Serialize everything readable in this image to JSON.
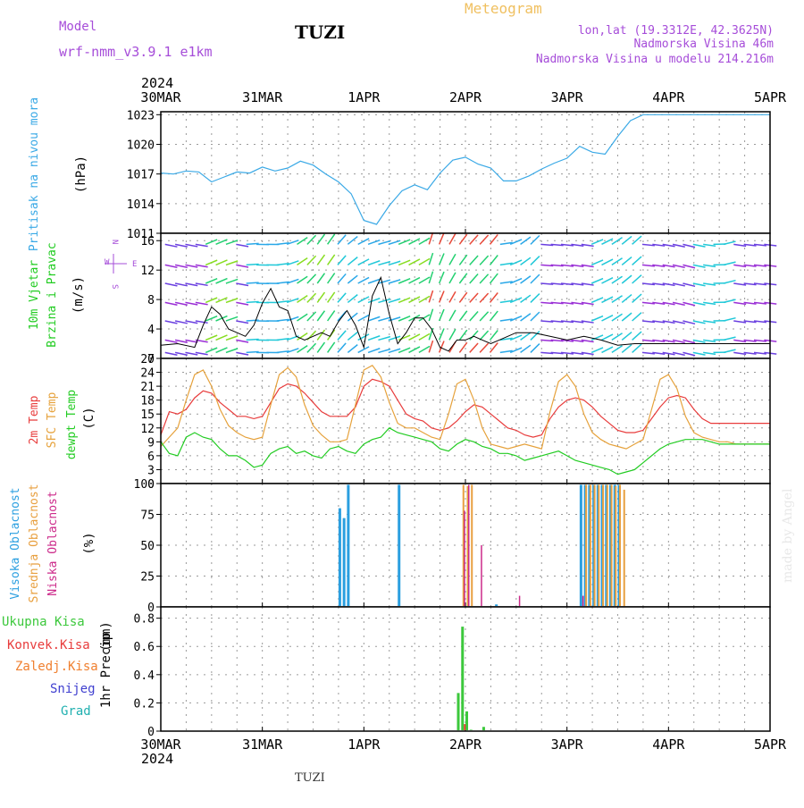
{
  "header": {
    "model_label": "Model",
    "model_name": "wrf-nmm_v3.9.1 e1km",
    "station": "TUZI",
    "title": "Meteogram",
    "lonlat": "lon,lat (19.3312E, 42.3625N)",
    "elevation": "Nadmorska Visina 46m",
    "model_elevation": "Nadmorska Visina u modelu 214.216m",
    "footer_station": "TUZI",
    "watermark": "made by Angel"
  },
  "colors": {
    "pressure": "#3aa9e6",
    "temp2m": "#e83c3c",
    "sfc": "#e6a23c",
    "dew": "#22cc22",
    "model_label": "#a64dd9",
    "title_orange": "#f0c060",
    "high_cloud": "#2b9fe0",
    "mid_cloud": "#e8a040",
    "low_cloud": "#cc2a8a",
    "total_precip": "#3cc83c",
    "conv_precip": "#e83c3c",
    "frz_precip": "#f08030",
    "snow": "#4040d0",
    "graupel": "#20b0b0",
    "wind_speed": "#000000"
  },
  "chart_data": [
    {
      "type": "line",
      "panel": "pressure",
      "ylabel_left": "Pritisak na nivou mora",
      "unit": "(hPa)",
      "yticks": [
        "1023",
        "1020",
        "1017",
        "1014",
        "1011"
      ],
      "ylim": [
        1011,
        1023.3
      ],
      "xlim": [
        0,
        144
      ],
      "series": [
        {
          "name": "Pritisak na nivou mora",
          "x": [
            0,
            3,
            6,
            9,
            12,
            15,
            18,
            21,
            24,
            27,
            30,
            33,
            36,
            39,
            42,
            45,
            48,
            51,
            54,
            57,
            60,
            63,
            66,
            69,
            72,
            75,
            78,
            81,
            84,
            87,
            90,
            93,
            96,
            99,
            102,
            105,
            108,
            111,
            114,
            117,
            120,
            123,
            126,
            129,
            132,
            135,
            138,
            141,
            144
          ],
          "values": [
            1017.1,
            1017.0,
            1017.3,
            1017.2,
            1016.2,
            1016.7,
            1017.2,
            1017.1,
            1017.7,
            1017.3,
            1017.6,
            1018.3,
            1017.9,
            1017.0,
            1016.2,
            1015.0,
            1012.3,
            1011.9,
            1013.8,
            1015.3,
            1015.9,
            1015.4,
            1017.1,
            1018.4,
            1018.7,
            1018.0,
            1017.6,
            1016.3,
            1016.3,
            1016.8,
            1017.5,
            1018.1,
            1018.6,
            1019.8,
            1019.2,
            1019.0,
            1020.8,
            1022.4,
            1023.0,
            1023.0,
            1023.0,
            1023.0,
            1023.0,
            1023.0,
            1023.0,
            1023.0,
            1023.0,
            1023.0,
            1023.0
          ]
        }
      ]
    },
    {
      "type": "line",
      "panel": "wind",
      "ylabel_left": "10m Vjetar",
      "ylabel_left2": "Brzina i Pravac",
      "unit": "(m/s)",
      "legend_compass": [
        "N",
        "W",
        "S",
        "E"
      ],
      "yticks": [
        "16",
        "12",
        "8",
        "4",
        "0"
      ],
      "ylim": [
        0,
        17
      ],
      "xlim": [
        0,
        144
      ],
      "series": [
        {
          "name": "10m Vjetar",
          "x": [
            0,
            4,
            8,
            10,
            12,
            14,
            16,
            18,
            20,
            22,
            24,
            26,
            28,
            30,
            32,
            34,
            36,
            38,
            40,
            42,
            44,
            46,
            48,
            50,
            52,
            54,
            56,
            58,
            60,
            62,
            64,
            66,
            68,
            70,
            72,
            74,
            76,
            78,
            80,
            84,
            88,
            92,
            96,
            100,
            104,
            108,
            112,
            116,
            120,
            124,
            128,
            132,
            136,
            140,
            144
          ],
          "values": [
            1.8,
            2.0,
            1.5,
            4.5,
            7.0,
            6.0,
            4.0,
            3.5,
            3.0,
            4.5,
            7.5,
            9.5,
            7.0,
            6.5,
            3.0,
            2.5,
            3.0,
            3.5,
            3.0,
            5.0,
            6.5,
            4.5,
            1.5,
            8.5,
            11.0,
            6.0,
            2.0,
            3.5,
            5.5,
            5.5,
            4.0,
            1.5,
            1.0,
            2.5,
            2.5,
            3.0,
            2.5,
            2.0,
            2.5,
            3.5,
            3.5,
            3.0,
            2.5,
            3.0,
            2.5,
            1.8,
            2.0,
            2.0,
            2.0,
            2.0,
            2.0,
            2.0,
            2.0,
            2.0,
            2.0
          ]
        }
      ]
    },
    {
      "type": "line",
      "panel": "temperature",
      "ylabel_left": "2m Temp",
      "ylabel_left2": "SFC Temp",
      "ylabel_left3": "dewpt Temp",
      "unit": "(C)",
      "yticks": [
        "27",
        "24",
        "21",
        "18",
        "15",
        "12",
        "9",
        "6",
        "3",
        "0"
      ],
      "ylim": [
        0,
        27
      ],
      "xlim": [
        0,
        144
      ],
      "series": [
        {
          "name": "2m Temp",
          "x": [
            0,
            2,
            4,
            6,
            8,
            10,
            12,
            14,
            16,
            18,
            20,
            22,
            24,
            26,
            28,
            30,
            32,
            34,
            36,
            38,
            40,
            42,
            44,
            46,
            48,
            50,
            52,
            54,
            56,
            58,
            60,
            62,
            64,
            66,
            68,
            70,
            72,
            74,
            76,
            78,
            80,
            82,
            84,
            86,
            88,
            90,
            92,
            94,
            96,
            98,
            100,
            102,
            104,
            106,
            108,
            110,
            112,
            114,
            116,
            118,
            120,
            122,
            124,
            126,
            128,
            130,
            132,
            134,
            136,
            138,
            140,
            142,
            144
          ],
          "values": [
            10.5,
            15.5,
            15.0,
            16.0,
            18.5,
            20.0,
            19.5,
            17.5,
            16.0,
            14.5,
            14.5,
            14.0,
            14.5,
            17.5,
            20.5,
            21.5,
            21.0,
            19.5,
            17.5,
            15.5,
            14.5,
            14.5,
            14.5,
            16.5,
            21.0,
            22.5,
            22.0,
            21.0,
            18.0,
            15.0,
            14.0,
            13.5,
            12.0,
            11.5,
            12.0,
            13.5,
            15.5,
            17.0,
            16.5,
            15.0,
            13.5,
            12.0,
            11.5,
            10.5,
            10.0,
            10.5,
            14.0,
            16.5,
            18.0,
            18.5,
            18.0,
            16.5,
            14.5,
            13.0,
            11.5,
            11.0,
            11.0,
            11.5,
            14.0,
            16.5,
            18.5,
            19.0,
            18.5,
            16.0,
            14.0,
            13.0,
            13.0,
            13.0,
            13.0,
            13.0,
            13.0,
            13.0,
            13.0
          ]
        },
        {
          "name": "SFC Temp",
          "x": [
            0,
            2,
            4,
            6,
            8,
            10,
            12,
            14,
            16,
            18,
            20,
            22,
            24,
            26,
            28,
            30,
            32,
            34,
            36,
            38,
            40,
            42,
            44,
            46,
            48,
            50,
            52,
            54,
            56,
            58,
            60,
            62,
            64,
            66,
            68,
            70,
            72,
            74,
            76,
            78,
            80,
            82,
            84,
            86,
            88,
            90,
            92,
            94,
            96,
            98,
            100,
            102,
            104,
            106,
            108,
            110,
            112,
            114,
            116,
            118,
            120,
            122,
            124,
            126,
            128,
            130,
            132,
            134,
            136,
            138,
            140,
            142,
            144
          ],
          "values": [
            8.0,
            10.0,
            12.0,
            18.0,
            23.5,
            24.5,
            21.0,
            16.0,
            12.5,
            11.0,
            10.0,
            9.5,
            10.0,
            17.0,
            23.5,
            25.0,
            23.0,
            17.0,
            12.5,
            10.5,
            9.0,
            9.0,
            9.5,
            17.0,
            24.5,
            25.5,
            23.0,
            17.5,
            13.0,
            12.0,
            12.0,
            11.0,
            10.0,
            9.5,
            15.0,
            21.5,
            22.5,
            18.0,
            12.0,
            8.5,
            8.0,
            7.5,
            8.0,
            8.5,
            8.0,
            7.5,
            15.5,
            22.0,
            23.5,
            21.0,
            15.0,
            11.0,
            9.5,
            8.5,
            8.0,
            7.5,
            8.5,
            9.5,
            16.0,
            22.5,
            23.5,
            20.5,
            14.5,
            11.0,
            10.0,
            9.5,
            9.0,
            9.0,
            8.5,
            8.5,
            8.5,
            8.5,
            8.5
          ]
        },
        {
          "name": "dewpt Temp",
          "x": [
            0,
            2,
            4,
            6,
            8,
            10,
            12,
            14,
            16,
            18,
            20,
            22,
            24,
            26,
            28,
            30,
            32,
            34,
            36,
            38,
            40,
            42,
            44,
            46,
            48,
            50,
            52,
            54,
            56,
            58,
            60,
            62,
            64,
            66,
            68,
            70,
            72,
            74,
            76,
            78,
            80,
            82,
            84,
            86,
            88,
            90,
            92,
            94,
            96,
            98,
            100,
            102,
            104,
            106,
            108,
            110,
            112,
            114,
            116,
            118,
            120,
            122,
            124,
            126,
            128,
            130,
            132,
            134,
            136,
            138,
            140,
            142,
            144
          ],
          "values": [
            9.0,
            6.5,
            6.0,
            10.0,
            11.0,
            10.0,
            9.5,
            7.5,
            6.0,
            6.0,
            5.0,
            3.5,
            4.0,
            6.5,
            7.5,
            8.0,
            6.5,
            7.0,
            6.0,
            5.5,
            7.5,
            8.0,
            7.0,
            6.5,
            8.5,
            9.5,
            10.0,
            12.0,
            11.0,
            10.5,
            10.0,
            9.5,
            9.0,
            7.5,
            7.0,
            8.5,
            9.5,
            9.0,
            8.0,
            7.5,
            6.5,
            6.5,
            6.0,
            5.0,
            5.5,
            6.0,
            6.5,
            7.0,
            6.0,
            5.0,
            4.5,
            4.0,
            3.5,
            3.0,
            2.0,
            2.5,
            3.0,
            4.5,
            6.0,
            7.5,
            8.5,
            9.0,
            9.5,
            9.5,
            9.5,
            9.0,
            8.5,
            8.5,
            8.5,
            8.5,
            8.5,
            8.5,
            8.5
          ]
        }
      ]
    },
    {
      "type": "bar",
      "panel": "clouds",
      "ylabel_left": "Visoka Oblacnost",
      "ylabel_left2": "Srednja Oblacnost",
      "ylabel_left3": "Niska Oblacnost",
      "unit": "(%)",
      "yticks": [
        "100",
        "75",
        "50",
        "25",
        "0"
      ],
      "ylim": [
        0,
        100
      ],
      "xlim": [
        0,
        144
      ],
      "series": [
        {
          "name": "Visoka Oblacnost",
          "x": [
            42,
            43,
            44,
            56,
            79,
            99,
            100,
            101,
            102,
            103,
            104,
            105,
            106,
            107,
            108
          ],
          "values": [
            80,
            72,
            99,
            99,
            2,
            99,
            99,
            99,
            99,
            99,
            99,
            99,
            99,
            99,
            99
          ]
        },
        {
          "name": "Srednja Oblacnost",
          "x": [
            71,
            72,
            73,
            100,
            101,
            102,
            103,
            104,
            105,
            106,
            107,
            108,
            109
          ],
          "values": [
            99,
            98,
            99,
            99,
            99,
            99,
            99,
            99,
            99,
            99,
            98,
            99,
            95
          ]
        },
        {
          "name": "Niska Oblacnost",
          "x": [
            71,
            72,
            75,
            84,
            99
          ],
          "values": [
            78,
            99,
            50,
            9,
            9
          ]
        }
      ]
    },
    {
      "type": "bar",
      "panel": "precip",
      "ylabel_left": "1hr Precip",
      "unit": "(mm)",
      "legend": [
        "Ukupna Kisa",
        "Konvek.Kisa",
        "Zaledj.Kisa",
        "Snijeg",
        "Grad"
      ],
      "yticks": [
        "0.8",
        "0.6",
        "0.4",
        "0.2",
        "0"
      ],
      "ylim": [
        0,
        0.88
      ],
      "xlim": [
        0,
        144
      ],
      "series": [
        {
          "name": "Ukupna Kisa",
          "x": [
            70,
            71,
            72,
            73,
            76
          ],
          "values": [
            0.27,
            0.74,
            0.14,
            0.01,
            0.03
          ]
        },
        {
          "name": "Konvek.Kisa",
          "x": [
            71
          ],
          "values": [
            0.05
          ]
        }
      ]
    }
  ],
  "xaxis": {
    "year": "2024",
    "ticks": [
      "30MAR",
      "31MAR",
      "1APR",
      "2APR",
      "3APR",
      "4APR",
      "5APR"
    ],
    "tick_hours": [
      0,
      24,
      48,
      72,
      96,
      120,
      144
    ]
  }
}
